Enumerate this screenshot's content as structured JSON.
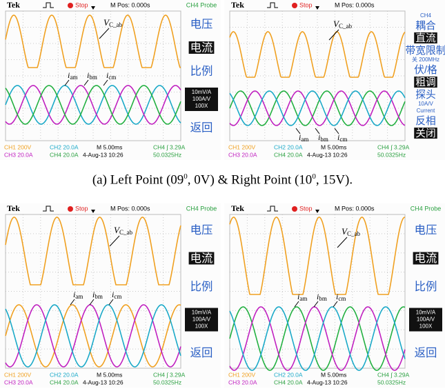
{
  "panels": [
    {
      "header": {
        "brand": "Tek",
        "state": "Stop",
        "position": "M Pos: 0.000s",
        "menu_title": "CH4 Probe"
      },
      "menu": [
        {
          "lines": [
            "电压"
          ],
          "boxed": false
        },
        {
          "lines": [
            "电流"
          ],
          "boxed": true
        },
        {
          "lines": [
            "比例"
          ],
          "boxed": false
        },
        {
          "lines": [
            "10mV/A",
            "100A/V",
            "100X"
          ],
          "boxed": true
        },
        {
          "lines": [
            "返回"
          ],
          "boxed": false
        }
      ],
      "status": [
        {
          "text": "CH1 200V",
          "color": "#f0a020"
        },
        {
          "text": "CH2 20.0A",
          "color": "#1aa9c8"
        },
        {
          "text": "M 5.00ms",
          "color": "#000000"
        },
        {
          "text": "CH4 ∫ 3.29A",
          "color": "#2aa040"
        },
        {
          "text": "CH3 20.0A",
          "color": "#c020c0"
        },
        {
          "text": "CH4 20.0A",
          "color": "#2aa040"
        },
        {
          "text": "4-Aug-13 10:26",
          "color": "#000000"
        },
        {
          "text": "50.0325Hz",
          "color": "#2aa040"
        }
      ],
      "voltage_label": {
        "main": "V",
        "sub": "C_ab"
      },
      "current_labels": [
        {
          "main": "i",
          "sub": "am"
        },
        {
          "main": "i",
          "sub": "bm"
        },
        {
          "main": "i",
          "sub": "cm"
        }
      ]
    },
    {
      "header": {
        "brand": "Tek",
        "state": "Stop",
        "position": "M Pos: 0.000s"
      },
      "menu": [
        {
          "lines": [
            "CH4"
          ],
          "boxed": false
        },
        {
          "lines": [
            "耦合"
          ],
          "boxed": false
        },
        {
          "lines": [
            "直流"
          ],
          "boxed": true
        },
        {
          "lines": [
            "带宽限制"
          ],
          "boxed": false
        },
        {
          "lines": [
            "关 200MHz"
          ],
          "boxed": false
        },
        {
          "lines": [
            "伏/格"
          ],
          "boxed": false
        },
        {
          "lines": [
            "粗调"
          ],
          "boxed": true
        },
        {
          "lines": [
            "探头"
          ],
          "boxed": false
        },
        {
          "lines": [
            "10A/V",
            "Current"
          ],
          "boxed": false
        },
        {
          "lines": [
            "反相"
          ],
          "boxed": false
        },
        {
          "lines": [
            "关闭"
          ],
          "boxed": true
        }
      ],
      "status": [
        {
          "text": "CH1 200V",
          "color": "#f0a020"
        },
        {
          "text": "CH2 20.0A",
          "color": "#1aa9c8"
        },
        {
          "text": "M 5.00ms",
          "color": "#000000"
        },
        {
          "text": "CH4 ∫ 3.29A",
          "color": "#2aa040"
        },
        {
          "text": "CH3 20.0A",
          "color": "#c020c0"
        },
        {
          "text": "CH4 20.0A",
          "color": "#2aa040"
        },
        {
          "text": "4-Aug-13 10:26",
          "color": "#000000"
        },
        {
          "text": "50.0325Hz",
          "color": "#2aa040"
        }
      ],
      "voltage_label": {
        "main": "V",
        "sub": "C_ab"
      },
      "current_labels": [
        {
          "main": "i",
          "sub": "am"
        },
        {
          "main": "i",
          "sub": "bm"
        },
        {
          "main": "i",
          "sub": "cm"
        }
      ]
    },
    {
      "header": {
        "brand": "Tek",
        "state": "Stop",
        "position": "M Pos: 0.000s",
        "menu_title": "CH4 Probe"
      },
      "menu": [
        {
          "lines": [
            "电压"
          ],
          "boxed": false
        },
        {
          "lines": [
            "电流"
          ],
          "boxed": true
        },
        {
          "lines": [
            "比例"
          ],
          "boxed": false
        },
        {
          "lines": [
            "10mV/A",
            "100A/V",
            "100X"
          ],
          "boxed": true
        },
        {
          "lines": [
            "返回"
          ],
          "boxed": false
        }
      ],
      "status": [
        {
          "text": "CH1 200V",
          "color": "#f0a020"
        },
        {
          "text": "CH2 20.0A",
          "color": "#1aa9c8"
        },
        {
          "text": "M 5.00ms",
          "color": "#000000"
        },
        {
          "text": "CH4 ∫ 3.29A",
          "color": "#2aa040"
        },
        {
          "text": "CH3 20.0A",
          "color": "#c020c0"
        },
        {
          "text": "CH4 20.0A",
          "color": "#2aa040"
        },
        {
          "text": "4-Aug-13 10:26",
          "color": "#000000"
        },
        {
          "text": "50.0325Hz",
          "color": "#2aa040"
        }
      ],
      "voltage_label": {
        "main": "V",
        "sub": "C_ab"
      },
      "current_labels": [
        {
          "main": "i",
          "sub": "am"
        },
        {
          "main": "i",
          "sub": "bm"
        },
        {
          "main": "i",
          "sub": "cm"
        }
      ]
    },
    {
      "header": {
        "brand": "Tek",
        "state": "Stop",
        "position": "M Pos: 0.000s",
        "menu_title": "CH4 Probe"
      },
      "menu": [
        {
          "lines": [
            "电压"
          ],
          "boxed": false
        },
        {
          "lines": [
            "电流"
          ],
          "boxed": true
        },
        {
          "lines": [
            "比例"
          ],
          "boxed": false
        },
        {
          "lines": [
            "10mV/A",
            "100A/V",
            "100X"
          ],
          "boxed": true
        },
        {
          "lines": [
            "返回"
          ],
          "boxed": false
        }
      ],
      "status": [
        {
          "text": "CH1 200V",
          "color": "#f0a020"
        },
        {
          "text": "CH2 20.0A",
          "color": "#1aa9c8"
        },
        {
          "text": "M 5.00ms",
          "color": "#000000"
        },
        {
          "text": "CH4 ∫ 3.29A",
          "color": "#2aa040"
        },
        {
          "text": "CH3 20.0A",
          "color": "#c020c0"
        },
        {
          "text": "CH4 20.0A",
          "color": "#2aa040"
        },
        {
          "text": "4-Aug-13 10:26",
          "color": "#000000"
        },
        {
          "text": "50.0325Hz",
          "color": "#2aa040"
        }
      ],
      "voltage_label": {
        "main": "V",
        "sub": "C_ab"
      },
      "current_labels": [
        {
          "main": "i",
          "sub": "am"
        },
        {
          "main": "i",
          "sub": "bm"
        },
        {
          "main": "i",
          "sub": "cm"
        }
      ]
    }
  ],
  "caption": {
    "parts": [
      "(a) Left Point (09",
      "0",
      ", 0V) & Right Point (10",
      "0",
      ", 15V)."
    ]
  }
}
